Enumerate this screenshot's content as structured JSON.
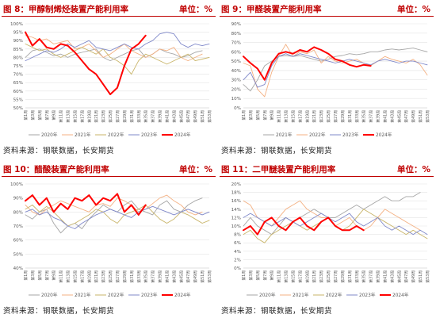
{
  "chart_data": [
    {
      "type": "line",
      "title": "图 8：甲醇制烯烃装置产能利用率",
      "unit": "单位：%",
      "source": "资料来源：钢联数据，长安期货",
      "x": [
        "第1周",
        "第3周",
        "第5周",
        "第7周",
        "第9周",
        "第11周",
        "第13周",
        "第15周",
        "第17周",
        "第19周",
        "第21周",
        "第23周",
        "第25周",
        "第27周",
        "第29周",
        "第31周",
        "第33周",
        "第35周",
        "第37周",
        "第39周",
        "第41周",
        "第43周",
        "第45周",
        "第47周",
        "第49周",
        "第51周",
        "第53周"
      ],
      "ylim": [
        50,
        100
      ],
      "ytick_labels": [
        "50%",
        "55%",
        "60%",
        "65%",
        "70%",
        "75%",
        "80%",
        "85%",
        "90%",
        "95%",
        "100%"
      ],
      "series": [
        {
          "name": "2020年",
          "color": "#a6a6a6",
          "values": [
            80,
            84,
            85,
            83,
            81,
            82,
            80,
            82,
            83,
            84,
            85,
            80,
            78,
            80,
            82,
            84,
            85,
            80,
            82,
            85,
            83,
            82,
            80,
            81,
            83,
            84,
            null
          ]
        },
        {
          "name": "2021年",
          "color": "#f4b183",
          "values": [
            93,
            92,
            90,
            91,
            88,
            89,
            90,
            85,
            86,
            88,
            84,
            80,
            82,
            85,
            88,
            84,
            82,
            80,
            82,
            85,
            84,
            86,
            80,
            78,
            80,
            82,
            null
          ]
        },
        {
          "name": "2022年",
          "color": "#c9b56a",
          "values": [
            88,
            86,
            84,
            85,
            82,
            80,
            82,
            84,
            86,
            84,
            82,
            85,
            80,
            78,
            75,
            70,
            78,
            82,
            80,
            78,
            76,
            78,
            80,
            82,
            78,
            79,
            80
          ]
        },
        {
          "name": "2023年",
          "color": "#7f88c9",
          "values": [
            78,
            80,
            82,
            84,
            83,
            85,
            88,
            86,
            88,
            90,
            86,
            85,
            84,
            86,
            88,
            86,
            85,
            88,
            90,
            94,
            95,
            94,
            88,
            86,
            88,
            87,
            88
          ]
        },
        {
          "name": "2024年",
          "color": "#ff0000",
          "values": [
            95,
            87,
            91,
            86,
            85,
            88,
            87,
            83,
            78,
            73,
            70,
            64,
            58,
            62,
            75,
            85,
            88,
            93,
            null,
            null,
            null,
            null,
            null,
            null,
            null,
            null,
            null
          ]
        }
      ]
    },
    {
      "type": "line",
      "title": "图 9：甲醛装置产能利用率",
      "unit": "单位：%",
      "source": "资料来源：钢联数据，长安期货",
      "x": [
        "第1周",
        "第3周",
        "第5周",
        "第7周",
        "第9周",
        "第11周",
        "第13周",
        "第15周",
        "第17周",
        "第19周",
        "第21周",
        "第23周",
        "第25周",
        "第27周",
        "第29周",
        "第31周",
        "第33周",
        "第35周",
        "第37周",
        "第39周",
        "第41周",
        "第43周",
        "第45周",
        "第47周",
        "第49周",
        "第51周",
        "第53周"
      ],
      "ylim": [
        0,
        90
      ],
      "ytick_labels": [
        "0%",
        "10%",
        "20%",
        "30%",
        "40%",
        "50%",
        "60%",
        "70%",
        "80%",
        "90%"
      ],
      "series": [
        {
          "name": "2021年",
          "color": "#a6a6a6",
          "values": [
            25,
            18,
            30,
            45,
            50,
            55,
            56,
            55,
            56,
            54,
            52,
            50,
            52,
            55,
            56,
            58,
            57,
            58,
            60,
            60,
            62,
            63,
            62,
            63,
            64,
            62,
            60
          ]
        },
        {
          "name": "2022年",
          "color": "#f4b183",
          "values": [
            48,
            45,
            20,
            12,
            38,
            55,
            68,
            55,
            60,
            58,
            62,
            48,
            55,
            50,
            48,
            50,
            52,
            48,
            45,
            50,
            55,
            52,
            50,
            48,
            52,
            46,
            35
          ]
        },
        {
          "name": "2023年",
          "color": "#7f88c9",
          "values": [
            30,
            38,
            22,
            25,
            45,
            55,
            58,
            55,
            58,
            56,
            54,
            52,
            50,
            48,
            50,
            52,
            50,
            48,
            46,
            50,
            52,
            50,
            48,
            50,
            50,
            48,
            46
          ]
        },
        {
          "name": "2024年",
          "color": "#ff0000",
          "values": [
            55,
            48,
            42,
            30,
            48,
            58,
            60,
            58,
            62,
            60,
            65,
            62,
            58,
            52,
            50,
            46,
            44,
            46,
            45,
            null,
            null,
            null,
            null,
            null,
            null,
            null,
            null
          ]
        }
      ]
    },
    {
      "type": "line",
      "title": "图 10：醋酸装置产能利用率",
      "unit": "单位：%",
      "source": "资料来源：钢联数据，长安期货",
      "x": [
        "第1周",
        "第3周",
        "第5周",
        "第7周",
        "第9周",
        "第11周",
        "第13周",
        "第15周",
        "第17周",
        "第19周",
        "第21周",
        "第23周",
        "第25周",
        "第27周",
        "第29周",
        "第31周",
        "第33周",
        "第35周",
        "第37周",
        "第39周",
        "第41周",
        "第43周",
        "第45周",
        "第47周",
        "第49周",
        "第51周",
        "第53周"
      ],
      "ylim": [
        40,
        100
      ],
      "ytick_labels": [
        "40%",
        "50%",
        "60%",
        "70%",
        "80%",
        "90%",
        "100%"
      ],
      "series": [
        {
          "name": "2020年",
          "color": "#a6a6a6",
          "values": [
            78,
            75,
            80,
            82,
            72,
            65,
            70,
            72,
            68,
            75,
            80,
            85,
            82,
            80,
            85,
            88,
            82,
            80,
            78,
            85,
            88,
            82,
            80,
            85,
            88,
            90,
            null
          ]
        },
        {
          "name": "2021年",
          "color": "#f4b183",
          "values": [
            85,
            80,
            78,
            82,
            85,
            88,
            86,
            84,
            82,
            80,
            85,
            86,
            84,
            90,
            88,
            85,
            80,
            82,
            86,
            90,
            92,
            88,
            85,
            80,
            78,
            80,
            null
          ]
        },
        {
          "name": "2022年",
          "color": "#c9b56a",
          "values": [
            82,
            85,
            80,
            84,
            80,
            75,
            70,
            72,
            75,
            78,
            82,
            80,
            75,
            72,
            78,
            80,
            82,
            85,
            80,
            75,
            72,
            75,
            80,
            78,
            75,
            72,
            74
          ]
        },
        {
          "name": "2023年",
          "color": "#7f88c9",
          "values": [
            80,
            82,
            78,
            80,
            76,
            74,
            70,
            68,
            72,
            75,
            78,
            80,
            82,
            80,
            78,
            76,
            80,
            82,
            84,
            82,
            80,
            78,
            80,
            82,
            80,
            78,
            80
          ]
        },
        {
          "name": "2024年",
          "color": "#ff0000",
          "values": [
            88,
            92,
            85,
            90,
            80,
            86,
            82,
            90,
            88,
            92,
            85,
            90,
            88,
            93,
            80,
            85,
            78,
            85,
            null,
            null,
            null,
            null,
            null,
            null,
            null,
            null,
            null
          ]
        }
      ]
    },
    {
      "type": "line",
      "title": "图 11：二甲醚装置产能利用率",
      "unit": "单位：%",
      "source": "资料来源：钢联数据，长安期货",
      "x": [
        "第1周",
        "第3周",
        "第5周",
        "第7周",
        "第9周",
        "第11周",
        "第13周",
        "第15周",
        "第17周",
        "第19周",
        "第21周",
        "第23周",
        "第25周",
        "第27周",
        "第29周",
        "第31周",
        "第33周",
        "第35周",
        "第37周",
        "第39周",
        "第41周",
        "第43周",
        "第45周",
        "第47周",
        "第49周",
        "第51周",
        "第53周"
      ],
      "ylim": [
        0,
        20
      ],
      "ytick_labels": [
        "0%",
        "2%",
        "4%",
        "6%",
        "8%",
        "10%",
        "12%",
        "14%",
        "16%",
        "18%",
        "20%"
      ],
      "series": [
        {
          "name": "2020年",
          "color": "#a6a6a6",
          "values": [
            10,
            12,
            10,
            9,
            8,
            10,
            12,
            11,
            12,
            13,
            14,
            13,
            12,
            12,
            13,
            14,
            15,
            14,
            15,
            16,
            17,
            16,
            16,
            17,
            17,
            18,
            null
          ]
        },
        {
          "name": "2021年",
          "color": "#f4b183",
          "values": [
            16,
            15,
            12,
            11,
            10,
            12,
            14,
            15,
            16,
            14,
            13,
            12,
            12,
            10,
            11,
            12,
            10,
            9,
            10,
            12,
            14,
            13,
            12,
            11,
            10,
            9,
            null
          ]
        },
        {
          "name": "2022年",
          "color": "#c9b56a",
          "values": [
            8,
            9,
            7,
            6,
            8,
            9,
            10,
            11,
            10,
            9,
            10,
            11,
            12,
            10,
            9,
            10,
            12,
            14,
            13,
            12,
            11,
            10,
            9,
            8,
            9,
            8,
            7
          ]
        },
        {
          "name": "2023年",
          "color": "#7f88c9",
          "values": [
            12,
            13,
            12,
            11,
            10,
            11,
            12,
            11,
            10,
            11,
            12,
            13,
            12,
            11,
            12,
            13,
            11,
            10,
            11,
            12,
            10,
            9,
            10,
            9,
            8,
            9,
            8
          ]
        },
        {
          "name": "2024年",
          "color": "#ff0000",
          "values": [
            9,
            10,
            8,
            11,
            12,
            10,
            9,
            11,
            12,
            10,
            9,
            11,
            12,
            10,
            9,
            9,
            10,
            9,
            null,
            null,
            null,
            null,
            null,
            null,
            null,
            null,
            null
          ]
        }
      ]
    }
  ]
}
